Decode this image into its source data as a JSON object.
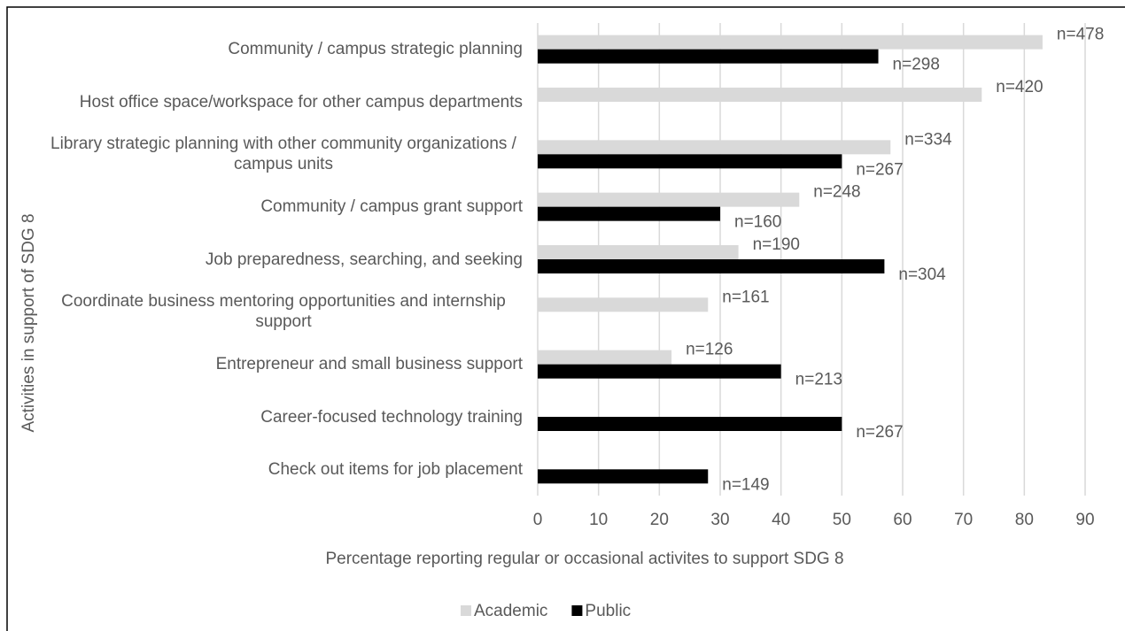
{
  "chart_data": {
    "type": "bar",
    "orientation": "horizontal",
    "x_label": "Percentage reporting regular or occasional activites to support SDG 8",
    "y_label": "Activities in support of SDG 8",
    "categories": [
      "Community / campus strategic planning",
      "Host office space/workspace for other campus departments",
      "Library strategic planning with other community organizations / campus units",
      "Community / campus grant support",
      "Job preparedness, searching, and seeking",
      "Coordinate business mentoring opportunities and internship support",
      "Entrepreneur and small business support",
      "Career-focused technology training",
      "Check out items for job placement"
    ],
    "series": [
      {
        "name": "Academic",
        "color": "#d9d9d9",
        "values": [
          83,
          73,
          58,
          43,
          33,
          28,
          22,
          null,
          null
        ],
        "n_labels": [
          "n=478",
          "n=420",
          "n=334",
          "n=248",
          "n=190",
          "n=161",
          "n=126",
          null,
          null
        ]
      },
      {
        "name": "Public",
        "color": "#000000",
        "values": [
          56,
          null,
          50,
          30,
          57,
          null,
          40,
          50,
          28
        ],
        "n_labels": [
          "n=298",
          null,
          "n=267",
          "n=160",
          "n=304",
          null,
          "n=213",
          "n=267",
          "n=149"
        ]
      }
    ],
    "xlim": [
      0,
      90
    ],
    "xticks": [
      0,
      10,
      20,
      30,
      40,
      50,
      60,
      70,
      80,
      90
    ],
    "grid": true,
    "legend": "bottom"
  }
}
